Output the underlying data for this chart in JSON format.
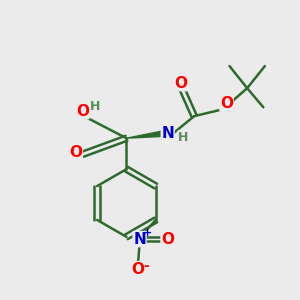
{
  "bg_color": "#ebebeb",
  "bond_color": "#2d6b2d",
  "bond_width": 1.8,
  "atom_colors": {
    "O": "#ff0000",
    "N": "#0000cc",
    "H": "#5a8a5a",
    "C": "#2d6b2d"
  },
  "font_size_atom": 11,
  "font_size_small": 9,
  "font_size_h": 9
}
